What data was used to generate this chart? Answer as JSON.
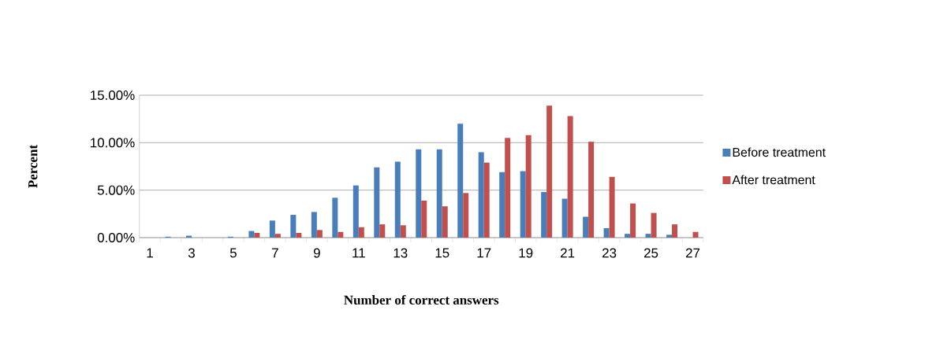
{
  "chart_data": {
    "type": "bar",
    "xlabel": "Number of correct answers",
    "ylabel": "Percent",
    "categories": [
      "1",
      null,
      "3",
      null,
      "5",
      null,
      "7",
      null,
      "9",
      null,
      "11",
      null,
      "13",
      null,
      "15",
      null,
      "17",
      null,
      "19",
      null,
      "21",
      null,
      "23",
      null,
      "25",
      null,
      "27"
    ],
    "series": [
      {
        "name": "Before treatment",
        "color": "#4a7ebb",
        "values": [
          0,
          0.1,
          0.2,
          0,
          0.1,
          0.7,
          1.8,
          2.4,
          2.7,
          4.2,
          5.5,
          7.4,
          8.0,
          9.3,
          9.3,
          12.0,
          9.0,
          6.9,
          7.0,
          4.8,
          4.1,
          2.2,
          1.0,
          0.4,
          0.4,
          0.3,
          0
        ]
      },
      {
        "name": "After treatment",
        "color": "#c0504d",
        "values": [
          0,
          0,
          0,
          0,
          0,
          0.5,
          0.4,
          0.5,
          0.8,
          0.6,
          1.1,
          1.4,
          1.3,
          3.9,
          3.3,
          4.7,
          7.9,
          10.5,
          10.8,
          13.9,
          12.8,
          10.1,
          6.4,
          3.6,
          2.6,
          1.4,
          0.6
        ]
      }
    ],
    "ylim": [
      0,
      15
    ],
    "yticks": [
      {
        "value": 0,
        "label": "0.00%"
      },
      {
        "value": 5,
        "label": "5.00%"
      },
      {
        "value": 10,
        "label": "10.00%"
      },
      {
        "value": 15,
        "label": "15.00%"
      }
    ],
    "grid": "y",
    "legend": "right"
  }
}
